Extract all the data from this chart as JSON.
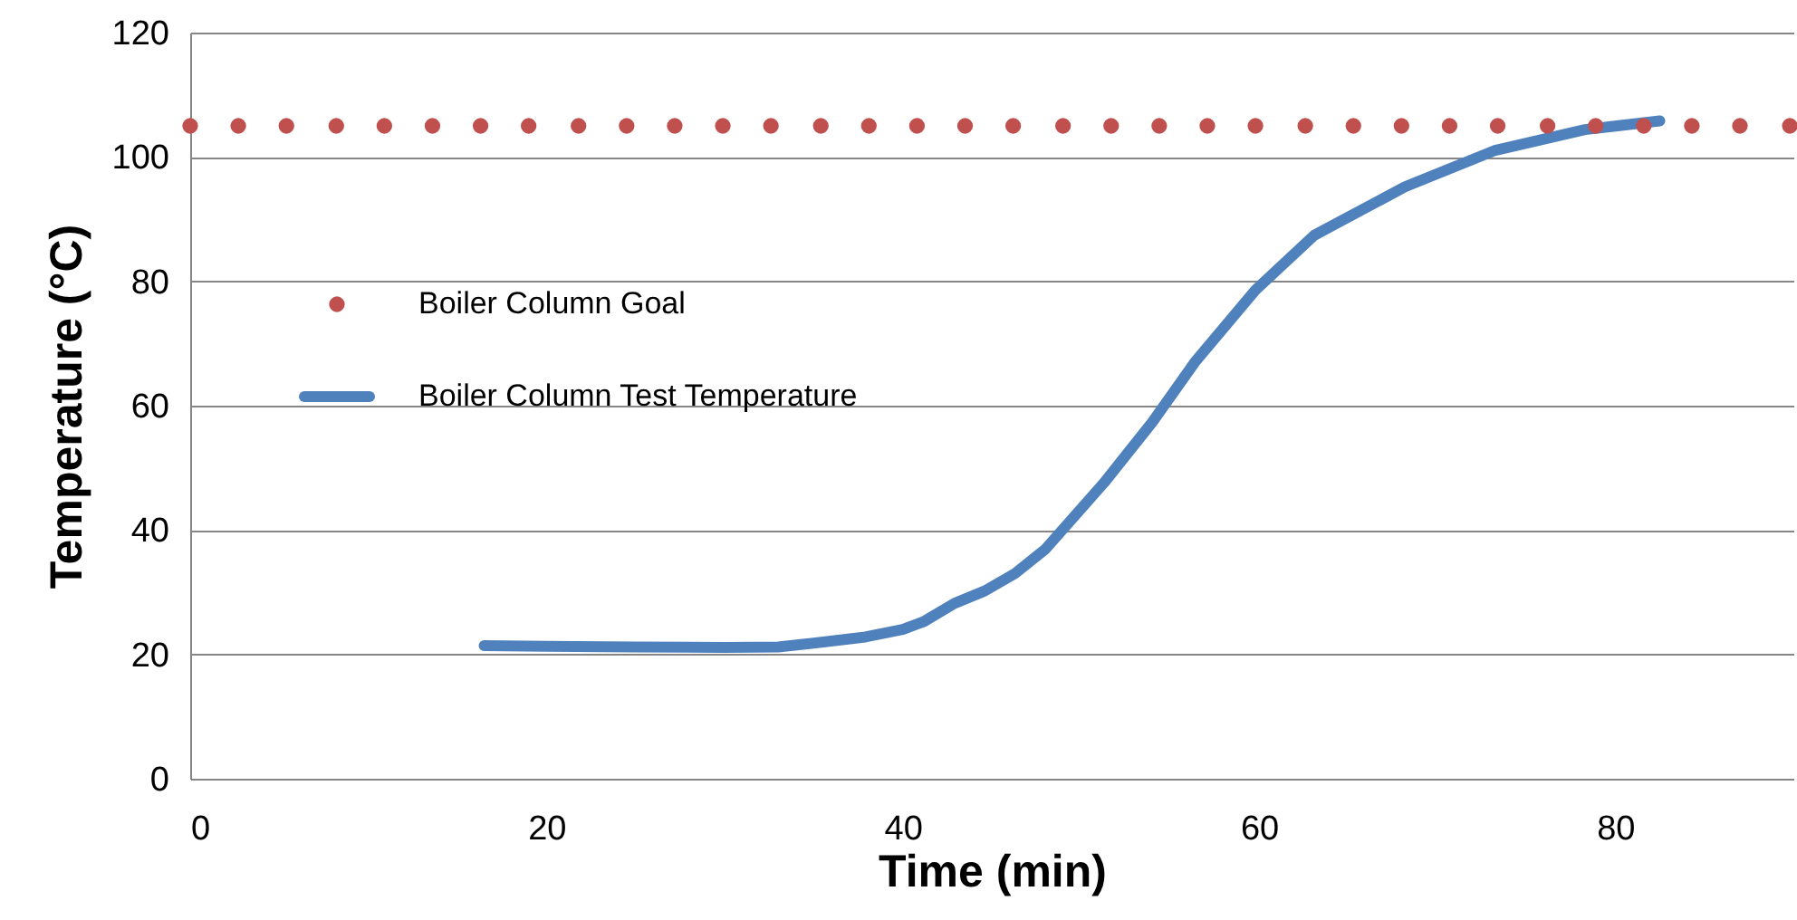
{
  "chart_data": {
    "type": "line",
    "xlabel": "Time (min)",
    "ylabel": "Temperature (°C)",
    "xlim": [
      0,
      90
    ],
    "xticks": [
      0,
      20,
      40,
      60,
      80
    ],
    "ylim": [
      0,
      120
    ],
    "yticks": [
      0,
      20,
      40,
      60,
      80,
      100,
      120
    ],
    "grid": "y",
    "legend": "left",
    "series": [
      {
        "name": "Boiler Column Goal",
        "type": "scatter",
        "marker": "circle",
        "color": "#c0504d",
        "x": [
          0,
          2.7,
          5.4,
          8.2,
          10.9,
          13.6,
          16.3,
          19.0,
          21.8,
          24.5,
          27.2,
          29.9,
          32.6,
          35.4,
          38.1,
          40.8,
          43.5,
          46.2,
          49.0,
          51.7,
          54.4,
          57.1,
          59.8,
          62.6,
          65.3,
          68.0,
          70.7,
          73.4,
          76.2,
          78.9,
          81.6,
          84.3,
          87.0,
          89.8
        ],
        "values": [
          105,
          105,
          105,
          105,
          105,
          105,
          105,
          105,
          105,
          105,
          105,
          105,
          105,
          105,
          105,
          105,
          105,
          105,
          105,
          105,
          105,
          105,
          105,
          105,
          105,
          105,
          105,
          105,
          105,
          105,
          105,
          105,
          105,
          105
        ]
      },
      {
        "name": "Boiler Column Test Temperature",
        "type": "line",
        "marker": "none",
        "line_style": "solid",
        "color": "#4f81bd",
        "x": [
          16.5,
          20,
          25,
          30,
          33,
          35,
          37.9,
          40,
          41.2,
          42.9,
          44.6,
          46.3,
          48.0,
          51.3,
          54.0,
          56.4,
          59.8,
          63.1,
          68.2,
          73.2,
          78.3,
          82.5
        ],
        "values": [
          21.4,
          21.3,
          21.2,
          21.1,
          21.2,
          21.8,
          22.8,
          24.0,
          25.3,
          28.2,
          30.2,
          33.0,
          36.9,
          47.6,
          57.3,
          67.0,
          78.6,
          87.4,
          95.2,
          101.0,
          104.4,
          105.8
        ]
      }
    ]
  }
}
